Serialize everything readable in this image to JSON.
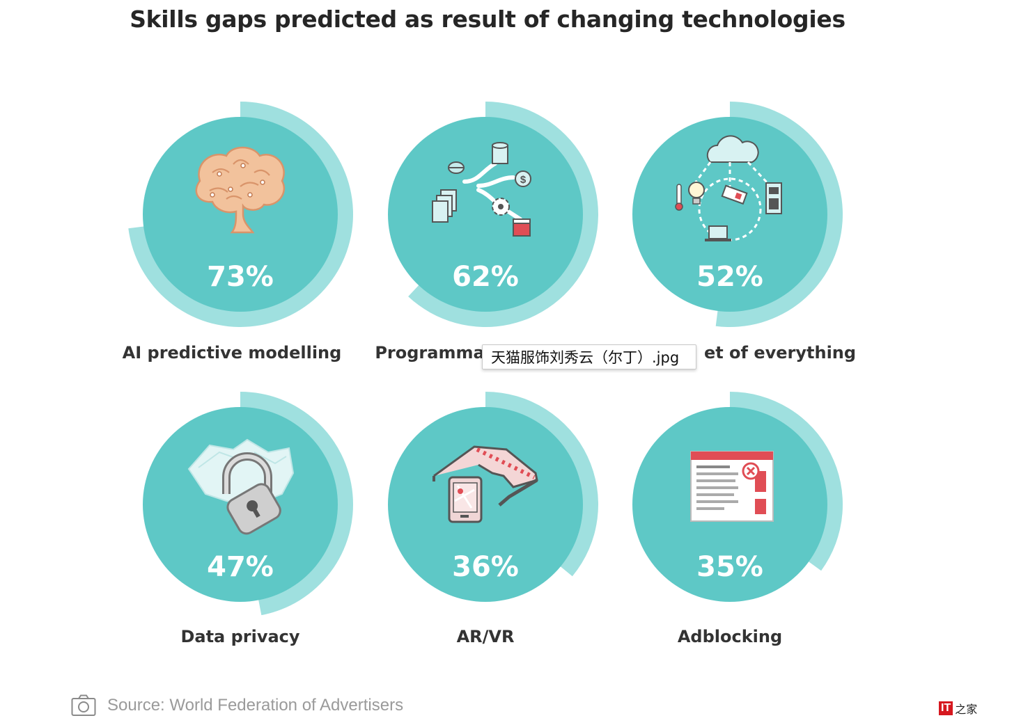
{
  "chart_data": {
    "type": "radial-progress",
    "title": "Skills gaps predicted as result of changing technologies",
    "items": [
      {
        "label": "AI predictive modelling",
        "value_label": "73%",
        "value": 73,
        "icon": "brain-icon"
      },
      {
        "label": "Programmatic media & ...",
        "value_label": "62%",
        "value": 62,
        "icon": "data-network-icon"
      },
      {
        "label": "Internet of everything",
        "value_label": "52%",
        "value": 52,
        "icon": "iot-cloud-icon"
      },
      {
        "label": "Data privacy",
        "value_label": "47%",
        "value": 47,
        "icon": "padlock-icon"
      },
      {
        "label": "AR/VR",
        "value_label": "36%",
        "value": 36,
        "icon": "ar-glasses-icon"
      },
      {
        "label": "Adblocking",
        "value_label": "35%",
        "value": 35,
        "icon": "adblock-browser-icon"
      }
    ],
    "visible_labels": [
      "AI predictive modelling",
      "Programma",
      "et of everything",
      "Data privacy",
      "AR/VR",
      "Adblocking"
    ]
  },
  "tooltip": {
    "text": "天猫服饰刘秀云（尔丁）.jpg"
  },
  "caption": {
    "source": "Source: World Federation of Advertisers",
    "icon": "camera-icon"
  },
  "watermark": {
    "text_box": "IT",
    "text_rest": "之家"
  },
  "colors": {
    "circle": "#5ec8c6",
    "ring": "#9fe0df",
    "value_text": "#ffffff",
    "label_text": "#333333",
    "accent_red": "#e04d55"
  }
}
